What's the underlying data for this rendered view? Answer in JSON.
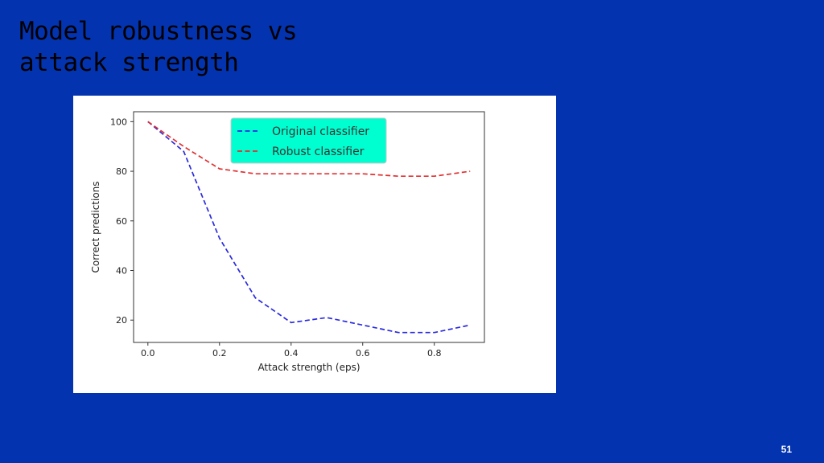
{
  "slide": {
    "title_line1": "Model robustness vs",
    "title_line2": "attack strength",
    "page_number": "51",
    "background_color": "#0433b0"
  },
  "chart_data": {
    "type": "line",
    "xlabel": "Attack strength (eps)",
    "ylabel": "Correct predictions",
    "xlim": [
      -0.04,
      0.94
    ],
    "ylim": [
      11,
      104
    ],
    "xticks": [
      0.0,
      0.2,
      0.4,
      0.6,
      0.8
    ],
    "xtick_labels": [
      "0.0",
      "0.2",
      "0.4",
      "0.6",
      "0.8"
    ],
    "yticks": [
      20,
      40,
      60,
      80,
      100
    ],
    "ytick_labels": [
      "20",
      "40",
      "60",
      "80",
      "100"
    ],
    "grid": false,
    "legend_position": "top-center",
    "legend_background": "#00ffd0",
    "x": [
      0.0,
      0.1,
      0.2,
      0.3,
      0.4,
      0.5,
      0.6,
      0.7,
      0.8,
      0.9
    ],
    "series": [
      {
        "name": "Original classifier",
        "color": "#2a2ae0",
        "line_style": "dashed",
        "values": [
          100,
          88,
          53,
          29,
          19,
          21,
          18,
          15,
          15,
          18
        ]
      },
      {
        "name": "Robust classifier",
        "color": "#e03030",
        "line_style": "dashed",
        "values": [
          100,
          90,
          81,
          79,
          79,
          79,
          79,
          78,
          78,
          80
        ]
      }
    ]
  }
}
